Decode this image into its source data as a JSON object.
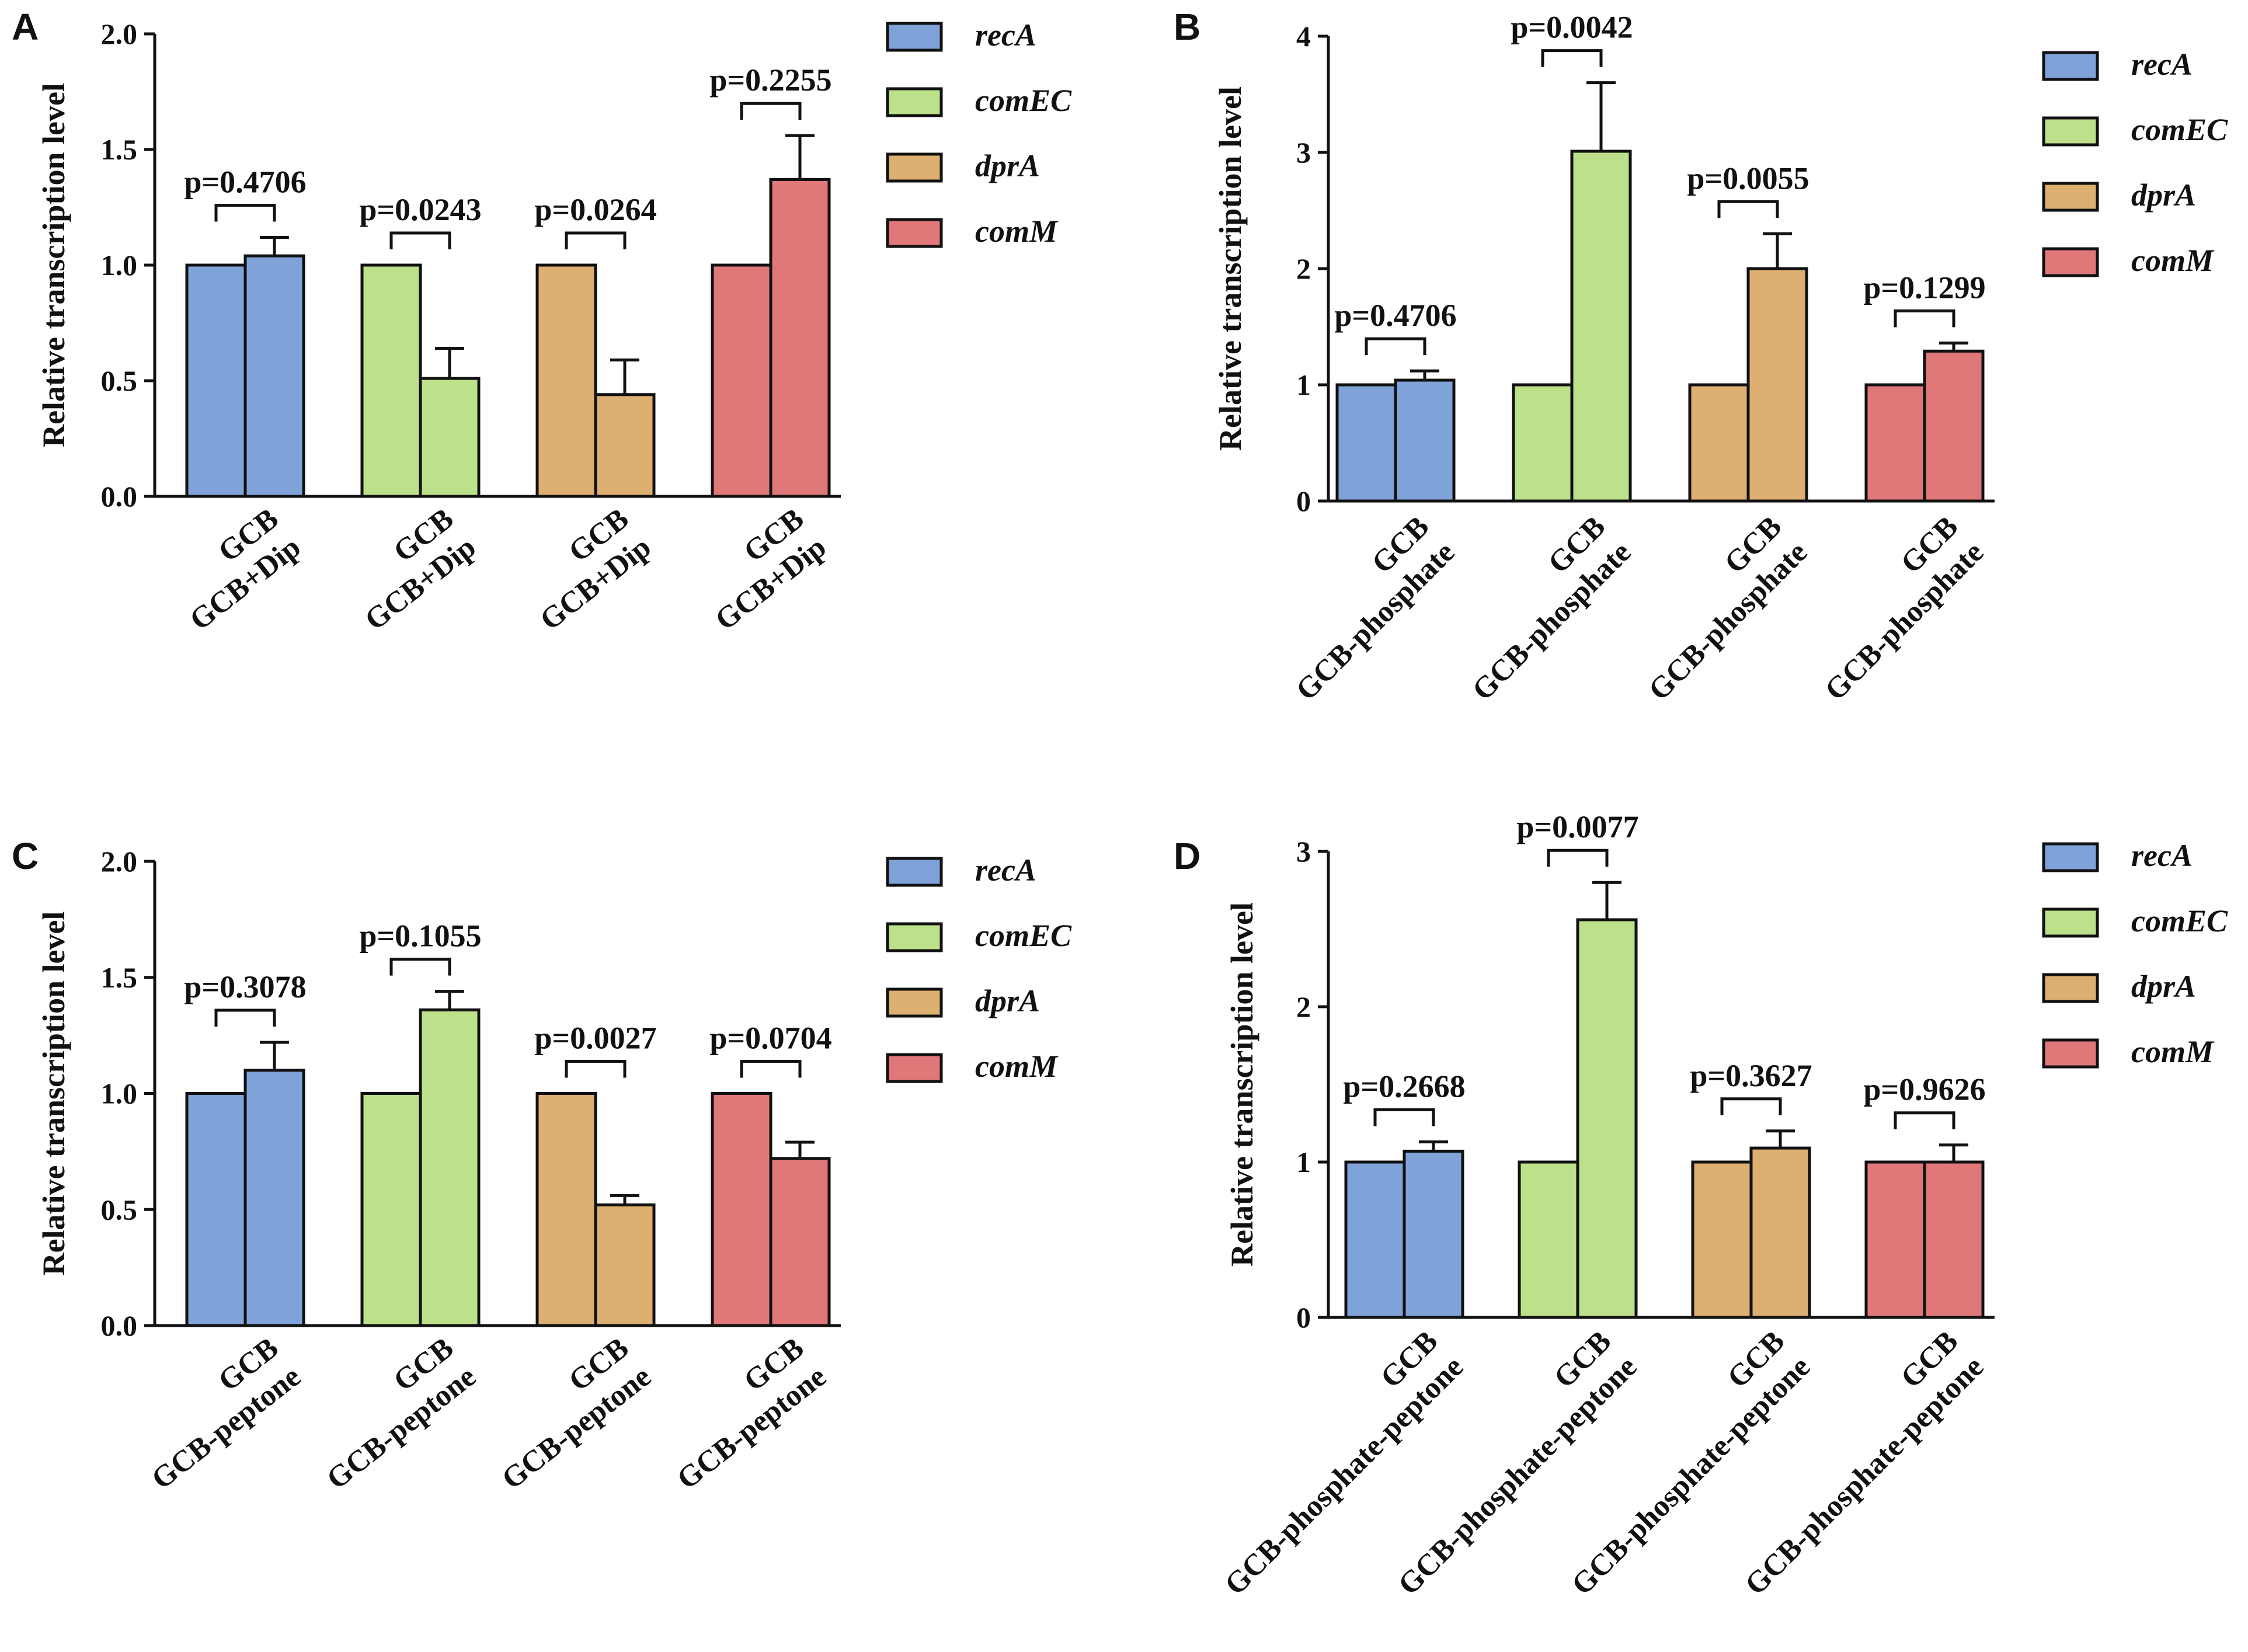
{
  "colors": {
    "recA": "#7FA3D9",
    "comEC": "#BDE08A",
    "dprA": "#DDAF70",
    "comM": "#E07779",
    "stroke": "#111111"
  },
  "chart_data": [
    {
      "panel": "A",
      "type": "bar",
      "ylabel": "Relative transcription level",
      "ylim": [
        0,
        2.0
      ],
      "yticks": [
        "0.0",
        "0.5",
        "1.0",
        "1.5",
        "2.0"
      ],
      "legend": [
        "recA",
        "comEC",
        "dprA",
        "comM"
      ],
      "groups": [
        {
          "gene": "recA",
          "labels": [
            "GCB",
            "GCB+Dip"
          ],
          "values": [
            1.0,
            1.04
          ],
          "errors": [
            0,
            0.08
          ],
          "p": "p=0.4706"
        },
        {
          "gene": "comEC",
          "labels": [
            "GCB",
            "GCB+Dip"
          ],
          "values": [
            1.0,
            0.51
          ],
          "errors": [
            0,
            0.13
          ],
          "p": "p=0.0243"
        },
        {
          "gene": "dprA",
          "labels": [
            "GCB",
            "GCB+Dip"
          ],
          "values": [
            1.0,
            0.44
          ],
          "errors": [
            0,
            0.15
          ],
          "p": "p=0.0264"
        },
        {
          "gene": "comM",
          "labels": [
            "GCB",
            "GCB+Dip"
          ],
          "values": [
            1.0,
            1.37
          ],
          "errors": [
            0,
            0.19
          ],
          "p": "p=0.2255"
        }
      ]
    },
    {
      "panel": "B",
      "type": "bar",
      "ylabel": "Relative transcription level",
      "ylim": [
        0,
        4
      ],
      "yticks": [
        "0",
        "1",
        "2",
        "3",
        "4"
      ],
      "legend": [
        "recA",
        "comEC",
        "dprA",
        "comM"
      ],
      "groups": [
        {
          "gene": "recA",
          "labels": [
            "GCB",
            "GCB-phosphate"
          ],
          "values": [
            1.0,
            1.04
          ],
          "errors": [
            0,
            0.08
          ],
          "p": "p=0.4706"
        },
        {
          "gene": "comEC",
          "labels": [
            "GCB",
            "GCB-phosphate"
          ],
          "values": [
            1.0,
            3.01
          ],
          "errors": [
            0,
            0.59
          ],
          "p": "p=0.0042"
        },
        {
          "gene": "dprA",
          "labels": [
            "GCB",
            "GCB-phosphate"
          ],
          "values": [
            1.0,
            2.0
          ],
          "errors": [
            0,
            0.3
          ],
          "p": "p=0.0055"
        },
        {
          "gene": "comM",
          "labels": [
            "GCB",
            "GCB-phosphate"
          ],
          "values": [
            1.0,
            1.29
          ],
          "errors": [
            0,
            0.07
          ],
          "p": "p=0.1299"
        }
      ]
    },
    {
      "panel": "C",
      "type": "bar",
      "ylabel": "Relative transcription level",
      "ylim": [
        0,
        2.0
      ],
      "yticks": [
        "0.0",
        "0.5",
        "1.0",
        "1.5",
        "2.0"
      ],
      "legend": [
        "recA",
        "comEC",
        "dprA",
        "comM"
      ],
      "groups": [
        {
          "gene": "recA",
          "labels": [
            "GCB",
            "GCB-peptone"
          ],
          "values": [
            1.0,
            1.1
          ],
          "errors": [
            0,
            0.12
          ],
          "p": "p=0.3078"
        },
        {
          "gene": "comEC",
          "labels": [
            "GCB",
            "GCB-peptone"
          ],
          "values": [
            1.0,
            1.36
          ],
          "errors": [
            0,
            0.08
          ],
          "p": "p=0.1055"
        },
        {
          "gene": "dprA",
          "labels": [
            "GCB",
            "GCB-peptone"
          ],
          "values": [
            1.0,
            0.52
          ],
          "errors": [
            0,
            0.04
          ],
          "p": "p=0.0027"
        },
        {
          "gene": "comM",
          "labels": [
            "GCB",
            "GCB-peptone"
          ],
          "values": [
            1.0,
            0.72
          ],
          "errors": [
            0,
            0.07
          ],
          "p": "p=0.0704"
        }
      ]
    },
    {
      "panel": "D",
      "type": "bar",
      "ylabel": "Relative transcription level",
      "ylim": [
        0,
        3
      ],
      "yticks": [
        "0",
        "1",
        "2",
        "3"
      ],
      "legend": [
        "recA",
        "comEC",
        "dprA",
        "comM"
      ],
      "groups": [
        {
          "gene": "recA",
          "labels": [
            "GCB",
            "GCB-phosphate-peptone"
          ],
          "values": [
            1.0,
            1.07
          ],
          "errors": [
            0,
            0.06
          ],
          "p": "p=0.2668"
        },
        {
          "gene": "comEC",
          "labels": [
            "GCB",
            "GCB-phosphate-peptone"
          ],
          "values": [
            1.0,
            2.56
          ],
          "errors": [
            0,
            0.24
          ],
          "p": "p=0.0077"
        },
        {
          "gene": "dprA",
          "labels": [
            "GCB",
            "GCB-phosphate-peptone"
          ],
          "values": [
            1.0,
            1.09
          ],
          "errors": [
            0,
            0.11
          ],
          "p": "p=0.3627"
        },
        {
          "gene": "comM",
          "labels": [
            "GCB",
            "GCB-phosphate-peptone"
          ],
          "values": [
            1.0,
            1.0
          ],
          "errors": [
            0,
            0.11
          ],
          "p": "p=0.9626"
        }
      ]
    }
  ]
}
